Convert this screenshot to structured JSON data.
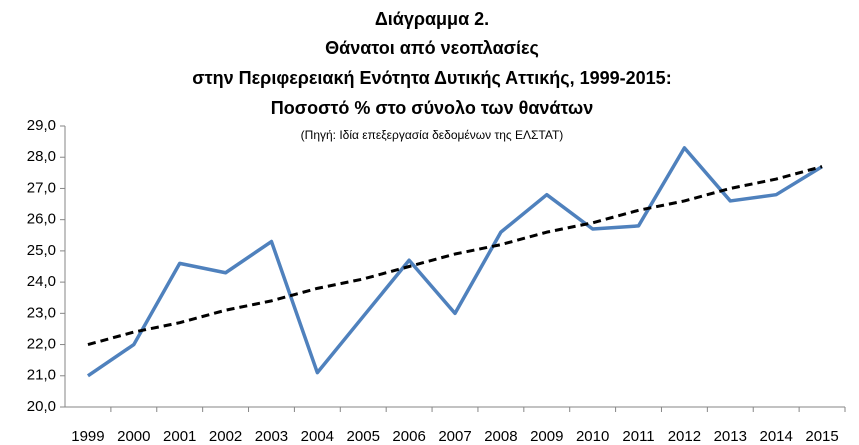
{
  "chart_data": {
    "type": "line",
    "title": [
      "Διάγραμμα 2.",
      "Θάνατοι από νεοπλασίες",
      "στην Περιφερειακή Ενότητα Δυτικής Αττικής, 1999-2015:",
      "Ποσοστό % στο σύνολο των θανάτων"
    ],
    "subtitle": "(Πηγή: Ιδία επεξεργασία δεδομένων της ΕΛΣΤΑΤ)",
    "categories": [
      "1999",
      "2000",
      "2001",
      "2002",
      "2003",
      "2004",
      "2005",
      "2006",
      "2007",
      "2008",
      "2009",
      "2010",
      "2011",
      "2012",
      "2013",
      "2014",
      "2015"
    ],
    "series": [
      {
        "color": "#4f81bd",
        "dash": false,
        "values": [
          21.0,
          22.0,
          24.6,
          24.3,
          25.3,
          21.1,
          22.9,
          24.7,
          23.0,
          25.6,
          26.8,
          25.7,
          25.8,
          28.3,
          26.6,
          26.8,
          27.7
        ]
      },
      {
        "color": "#000000",
        "dash": true,
        "values": [
          22.0,
          22.4,
          22.7,
          23.1,
          23.4,
          23.8,
          24.1,
          24.5,
          24.9,
          25.2,
          25.6,
          25.9,
          26.3,
          26.6,
          27.0,
          27.3,
          27.7
        ]
      }
    ],
    "ylim": [
      20,
      29
    ],
    "yticks": [
      {
        "value": 20,
        "label": "20,0"
      },
      {
        "value": 21,
        "label": "21,0"
      },
      {
        "value": 22,
        "label": "22,0"
      },
      {
        "value": 23,
        "label": "23,0"
      },
      {
        "value": 24,
        "label": "24,0"
      },
      {
        "value": 25,
        "label": "25,0"
      },
      {
        "value": 26,
        "label": "26,0"
      },
      {
        "value": 27,
        "label": "27,0"
      },
      {
        "value": 28,
        "label": "28,0"
      },
      {
        "value": 29,
        "label": "29,0"
      }
    ],
    "grid": false
  }
}
